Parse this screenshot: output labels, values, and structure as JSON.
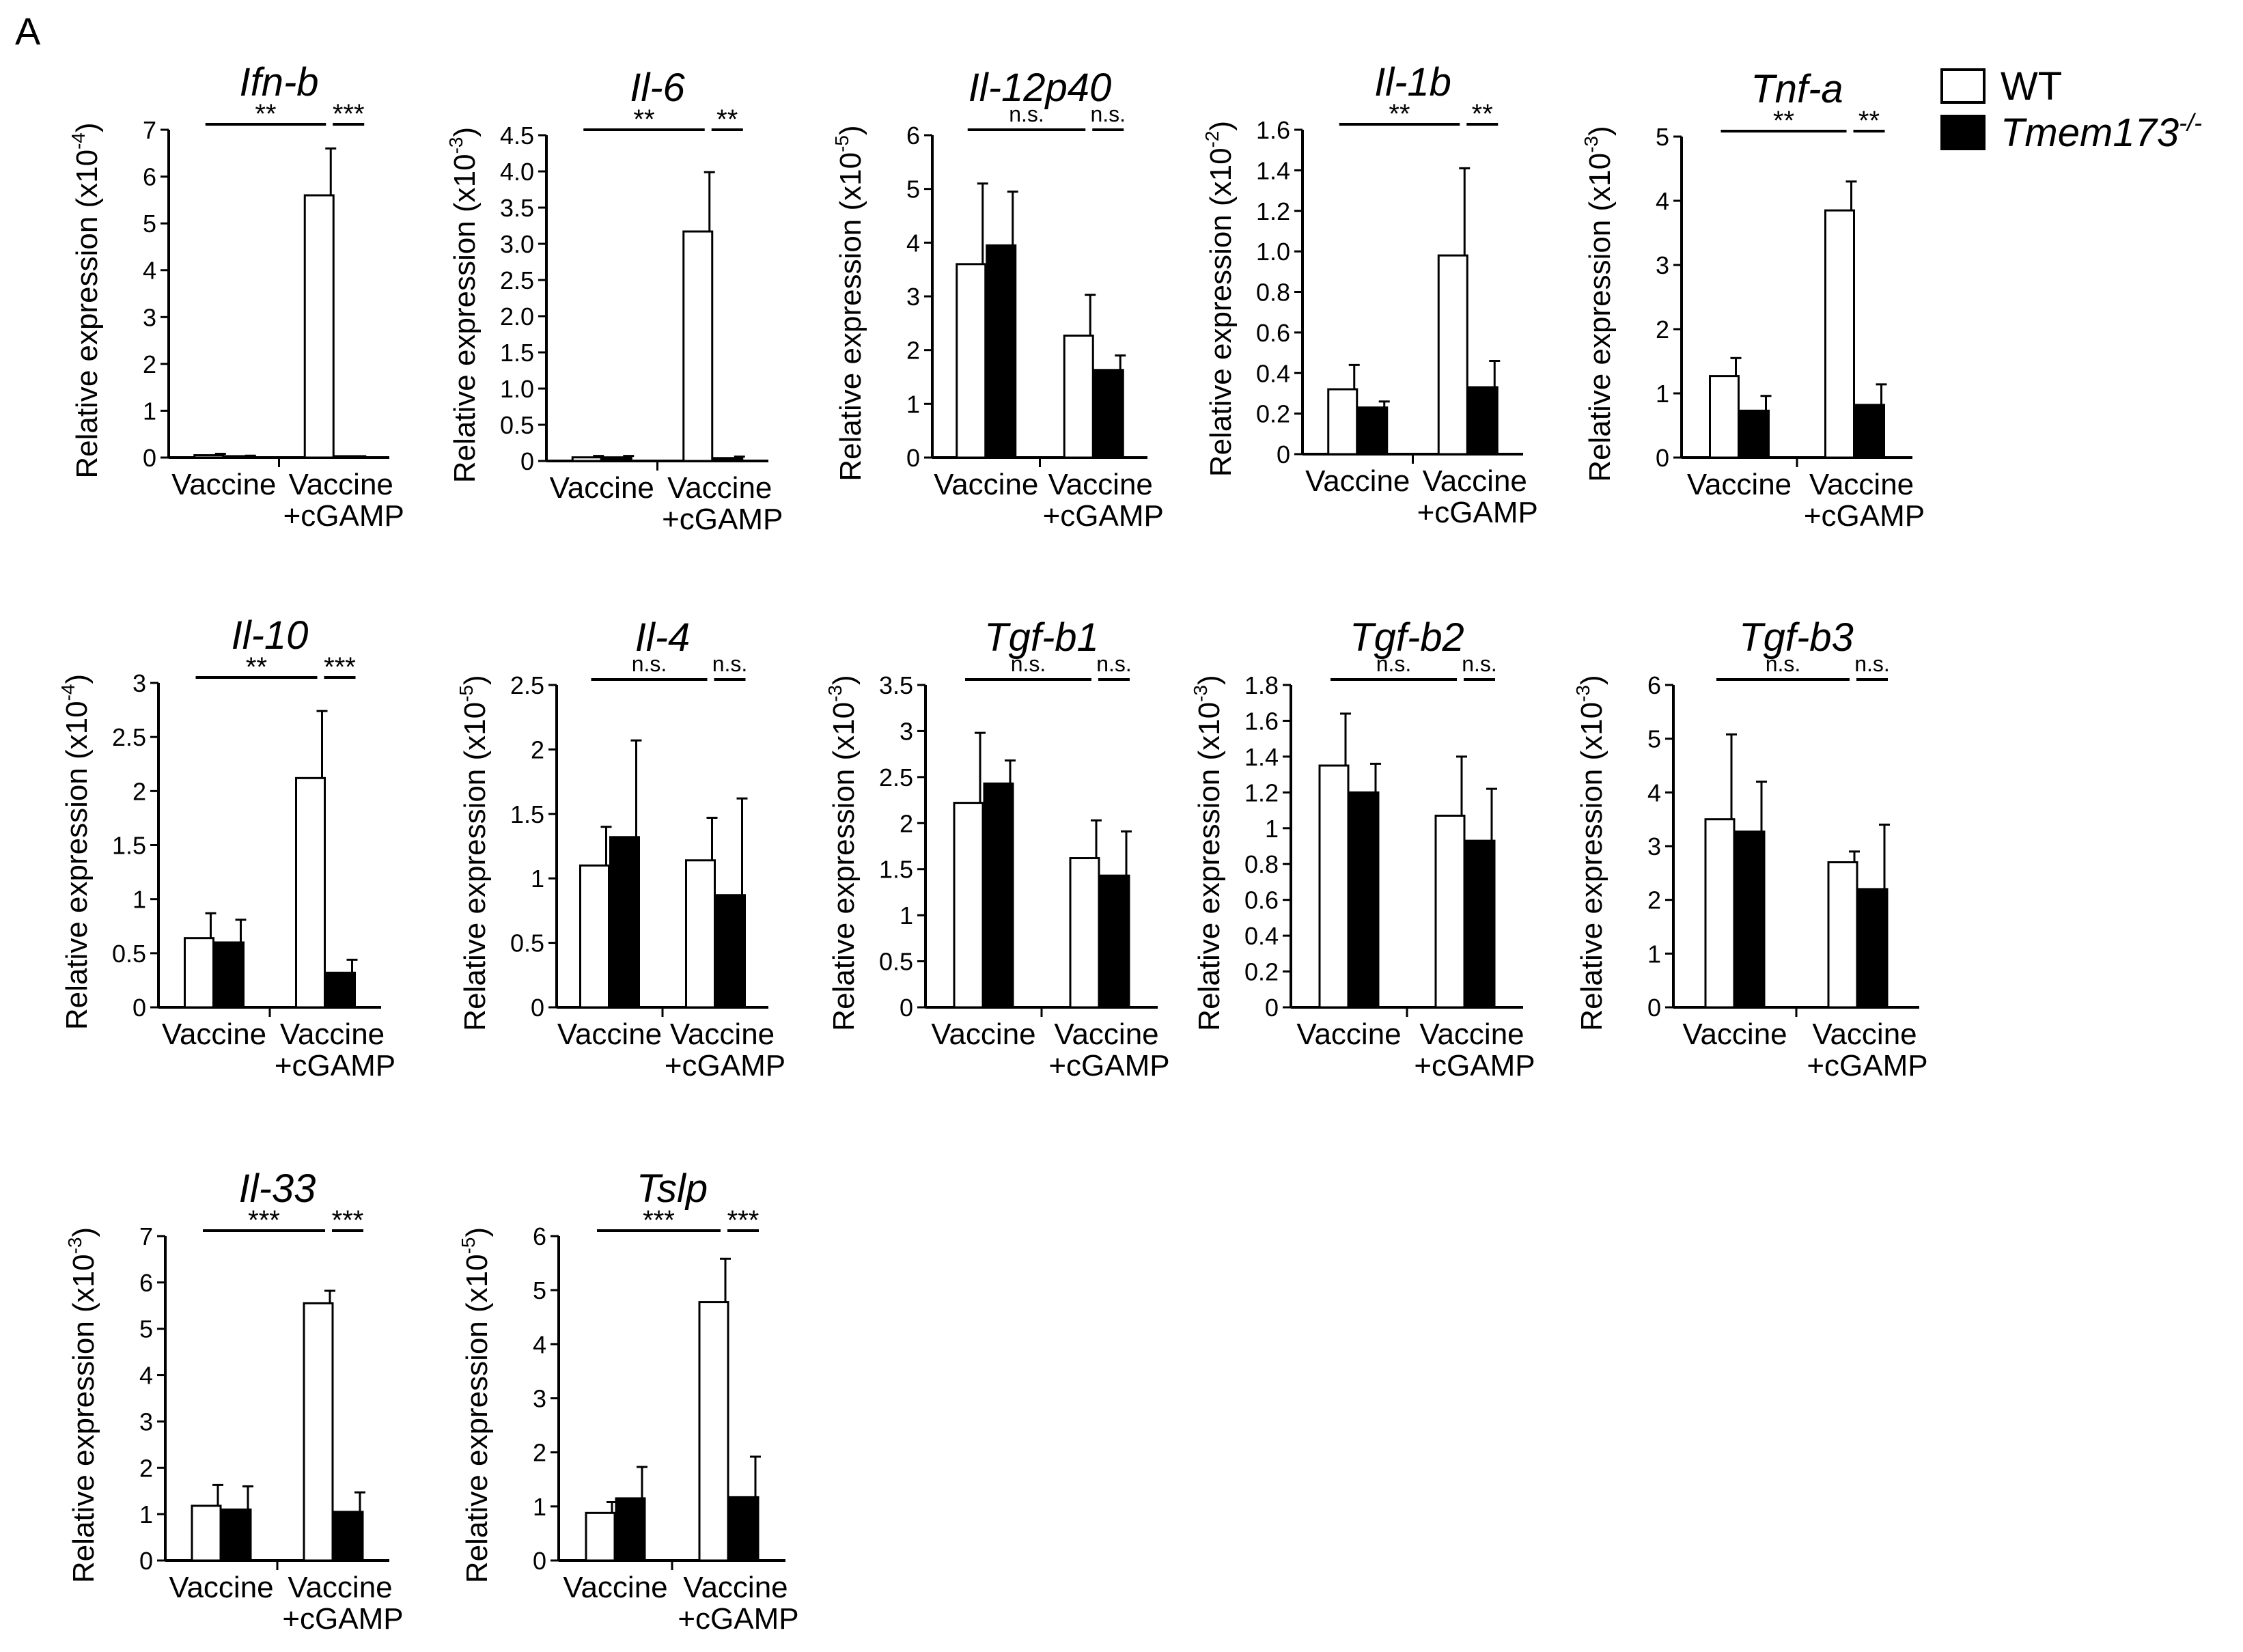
{
  "panel_label": "A",
  "colors": {
    "wt": "#ffffff",
    "ko": "#000000",
    "stroke": "#000000"
  },
  "legend": {
    "placement": "top-right",
    "entries": [
      {
        "name": "WT",
        "sup": "",
        "color": "#ffffff"
      },
      {
        "name": "Tmem173",
        "sup": "-/-",
        "color": "#000000"
      }
    ]
  },
  "ylabel": "Relative expression",
  "groups": [
    "Vaccine",
    "Vaccine",
    "+cGAMP"
  ],
  "chart_data": [
    {
      "type": "bar",
      "title": "Ifn-b",
      "unit": "(x10",
      "exp": "-4",
      "unit_end": ")",
      "ticks": [
        "0",
        "1",
        "2",
        "3",
        "4",
        "5",
        "6",
        "7"
      ],
      "ylim": [
        0,
        7
      ],
      "categories": [
        "Vaccine",
        "Vaccine +cGAMP"
      ],
      "series": [
        {
          "name": "WT",
          "values": [
            0.05,
            5.6
          ],
          "err": [
            0.03,
            1.0
          ]
        },
        {
          "name": "Tmem173-/-",
          "values": [
            0.03,
            0.02
          ],
          "err": [
            0.01,
            0.01
          ]
        }
      ],
      "sig": [
        "**",
        "***"
      ]
    },
    {
      "type": "bar",
      "title": "Il-6",
      "unit": "(x10",
      "exp": "-3",
      "unit_end": ")",
      "ticks": [
        "0",
        "0.5",
        "1.0",
        "1.5",
        "2.0",
        "2.5",
        "3.0",
        "3.5",
        "4.0",
        "4.5"
      ],
      "ylim": [
        0,
        4.5
      ],
      "categories": [
        "Vaccine",
        "Vaccine +cGAMP"
      ],
      "series": [
        {
          "name": "WT",
          "values": [
            0.05,
            3.17
          ],
          "err": [
            0.02,
            0.82
          ]
        },
        {
          "name": "Tmem173-/-",
          "values": [
            0.05,
            0.04
          ],
          "err": [
            0.02,
            0.02
          ]
        }
      ],
      "sig": [
        "**",
        "**"
      ]
    },
    {
      "type": "bar",
      "title": "Il-12p40",
      "unit": "(x10",
      "exp": "-5",
      "unit_end": ")",
      "ticks": [
        "0",
        "1",
        "2",
        "3",
        "4",
        "5",
        "6"
      ],
      "ylim": [
        0,
        6
      ],
      "categories": [
        "Vaccine",
        "Vaccine +cGAMP"
      ],
      "series": [
        {
          "name": "WT",
          "values": [
            3.6,
            2.27
          ],
          "err": [
            1.5,
            0.76
          ]
        },
        {
          "name": "Tmem173-/-",
          "values": [
            3.95,
            1.63
          ],
          "err": [
            1.0,
            0.27
          ]
        }
      ],
      "sig": [
        "n.s.",
        "n.s."
      ]
    },
    {
      "type": "bar",
      "title": "Il-1b",
      "unit": "(x10",
      "exp": "-2",
      "unit_end": ")",
      "ticks": [
        "0",
        "0.2",
        "0.4",
        "0.6",
        "0.8",
        "1.0",
        "1.2",
        "1.4",
        "1.6"
      ],
      "ylim": [
        0,
        1.6
      ],
      "categories": [
        "Vaccine",
        "Vaccine +cGAMP"
      ],
      "series": [
        {
          "name": "WT",
          "values": [
            0.32,
            0.98
          ],
          "err": [
            0.12,
            0.43
          ]
        },
        {
          "name": "Tmem173-/-",
          "values": [
            0.23,
            0.33
          ],
          "err": [
            0.03,
            0.13
          ]
        }
      ],
      "sig": [
        "**",
        "**"
      ]
    },
    {
      "type": "bar",
      "title": "Tnf-a",
      "unit": "(x10",
      "exp": "-3",
      "unit_end": ")",
      "ticks": [
        "0",
        "1",
        "2",
        "3",
        "4",
        "5"
      ],
      "ylim": [
        0,
        5
      ],
      "categories": [
        "Vaccine",
        "Vaccine +cGAMP"
      ],
      "series": [
        {
          "name": "WT",
          "values": [
            1.27,
            3.85
          ],
          "err": [
            0.28,
            0.45
          ]
        },
        {
          "name": "Tmem173-/-",
          "values": [
            0.73,
            0.82
          ],
          "err": [
            0.23,
            0.32
          ]
        }
      ],
      "sig": [
        "**",
        "**"
      ]
    },
    {
      "type": "bar",
      "title": "Il-10",
      "unit": "(x10",
      "exp": "-4",
      "unit_end": ")",
      "ticks": [
        "0",
        "0.5",
        "1",
        "1.5",
        "2",
        "2.5",
        "3"
      ],
      "ylim": [
        0,
        3
      ],
      "categories": [
        "Vaccine",
        "Vaccine +cGAMP"
      ],
      "series": [
        {
          "name": "WT",
          "values": [
            0.64,
            2.12
          ],
          "err": [
            0.23,
            0.62
          ]
        },
        {
          "name": "Tmem173-/-",
          "values": [
            0.6,
            0.32
          ],
          "err": [
            0.21,
            0.12
          ]
        }
      ],
      "sig": [
        "**",
        "***"
      ]
    },
    {
      "type": "bar",
      "title": "Il-4",
      "unit": "(x10",
      "exp": "-5",
      "unit_end": ")",
      "ticks": [
        "0",
        "0.5",
        "1",
        "1.5",
        "2",
        "2.5"
      ],
      "ylim": [
        0,
        2.5
      ],
      "categories": [
        "Vaccine",
        "Vaccine +cGAMP"
      ],
      "series": [
        {
          "name": "WT",
          "values": [
            1.1,
            1.14
          ],
          "err": [
            0.3,
            0.33
          ]
        },
        {
          "name": "Tmem173-/-",
          "values": [
            1.32,
            0.87
          ],
          "err": [
            0.75,
            0.75
          ]
        }
      ],
      "sig": [
        "n.s.",
        "n.s."
      ]
    },
    {
      "type": "bar",
      "title": "Tgf-b1",
      "unit": "(x10",
      "exp": "-3",
      "unit_end": ")",
      "ticks": [
        "0",
        "0.5",
        "1",
        "1.5",
        "2",
        "2.5",
        "3",
        "3.5"
      ],
      "ylim": [
        0,
        3.5
      ],
      "categories": [
        "Vaccine",
        "Vaccine +cGAMP"
      ],
      "series": [
        {
          "name": "WT",
          "values": [
            2.22,
            1.62
          ],
          "err": [
            0.76,
            0.41
          ]
        },
        {
          "name": "Tmem173-/-",
          "values": [
            2.43,
            1.43
          ],
          "err": [
            0.25,
            0.48
          ]
        }
      ],
      "sig": [
        "n.s.",
        "n.s."
      ]
    },
    {
      "type": "bar",
      "title": "Tgf-b2",
      "unit": "(x10",
      "exp": "-3",
      "unit_end": ")",
      "ticks": [
        "0",
        "0.2",
        "0.4",
        "0.6",
        "0.8",
        "1",
        "1.2",
        "1.4",
        "1.6",
        "1.8"
      ],
      "ylim": [
        0,
        1.8
      ],
      "categories": [
        "Vaccine",
        "Vaccine +cGAMP"
      ],
      "series": [
        {
          "name": "WT",
          "values": [
            1.35,
            1.07
          ],
          "err": [
            0.29,
            0.33
          ]
        },
        {
          "name": "Tmem173-/-",
          "values": [
            1.2,
            0.93
          ],
          "err": [
            0.16,
            0.29
          ]
        }
      ],
      "sig": [
        "n.s.",
        "n.s."
      ]
    },
    {
      "type": "bar",
      "title": "Tgf-b3",
      "unit": "(x10",
      "exp": "-3",
      "unit_end": ")",
      "ticks": [
        "0",
        "1",
        "2",
        "3",
        "4",
        "5",
        "6"
      ],
      "ylim": [
        0,
        6
      ],
      "categories": [
        "Vaccine",
        "Vaccine +cGAMP"
      ],
      "series": [
        {
          "name": "WT",
          "values": [
            3.5,
            2.7
          ],
          "err": [
            1.58,
            0.2
          ]
        },
        {
          "name": "Tmem173-/-",
          "values": [
            3.27,
            2.2
          ],
          "err": [
            0.93,
            1.2
          ]
        }
      ],
      "sig": [
        "n.s.",
        "n.s."
      ]
    },
    {
      "type": "bar",
      "title": "Il-33",
      "unit": "(x10",
      "exp": "-3",
      "unit_end": ")",
      "ticks": [
        "0",
        "1",
        "2",
        "3",
        "4",
        "5",
        "6",
        "7"
      ],
      "ylim": [
        0,
        7
      ],
      "categories": [
        "Vaccine",
        "Vaccine +cGAMP"
      ],
      "series": [
        {
          "name": "WT",
          "values": [
            1.18,
            5.55
          ],
          "err": [
            0.45,
            0.27
          ]
        },
        {
          "name": "Tmem173-/-",
          "values": [
            1.1,
            1.05
          ],
          "err": [
            0.5,
            0.42
          ]
        }
      ],
      "sig": [
        "***",
        "***"
      ]
    },
    {
      "type": "bar",
      "title": "Tslp",
      "unit": "(x10",
      "exp": "-5",
      "unit_end": ")",
      "ticks": [
        "0",
        "1",
        "2",
        "3",
        "4",
        "5",
        "6"
      ],
      "ylim": [
        0,
        6
      ],
      "categories": [
        "Vaccine",
        "Vaccine +cGAMP"
      ],
      "series": [
        {
          "name": "WT",
          "values": [
            0.88,
            4.78
          ],
          "err": [
            0.2,
            0.8
          ]
        },
        {
          "name": "Tmem173-/-",
          "values": [
            1.15,
            1.17
          ],
          "err": [
            0.58,
            0.75
          ]
        }
      ],
      "sig": [
        "***",
        "***"
      ]
    }
  ]
}
